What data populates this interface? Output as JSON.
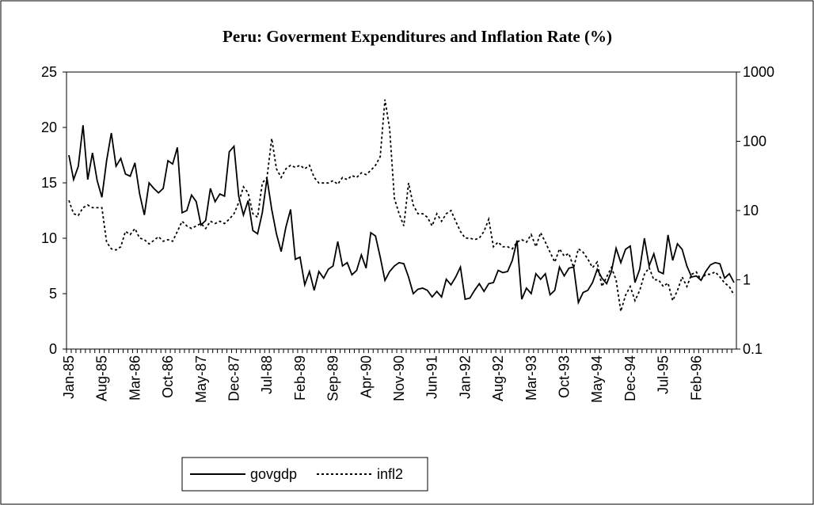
{
  "chart_data": {
    "type": "line",
    "title": "Peru: Goverment Expenditures and Inflation Rate (%)",
    "categories": [
      "Jan-85",
      null,
      null,
      null,
      null,
      null,
      null,
      "Aug-85",
      null,
      null,
      null,
      null,
      null,
      null,
      "Mar-86",
      null,
      null,
      null,
      null,
      null,
      null,
      "Oct-86",
      null,
      null,
      null,
      null,
      null,
      null,
      "May-87",
      null,
      null,
      null,
      null,
      null,
      null,
      "Dec-87",
      null,
      null,
      null,
      null,
      null,
      null,
      "Jul-88",
      null,
      null,
      null,
      null,
      null,
      null,
      "Feb-89",
      null,
      null,
      null,
      null,
      null,
      null,
      "Sep-89",
      null,
      null,
      null,
      null,
      null,
      null,
      "Apr-90",
      null,
      null,
      null,
      null,
      null,
      null,
      "Nov-90",
      null,
      null,
      null,
      null,
      null,
      null,
      "Jun-91",
      null,
      null,
      null,
      null,
      null,
      null,
      "Jan-92",
      null,
      null,
      null,
      null,
      null,
      null,
      "Aug-92",
      null,
      null,
      null,
      null,
      null,
      null,
      "Mar-93",
      null,
      null,
      null,
      null,
      null,
      null,
      "Oct-93",
      null,
      null,
      null,
      null,
      null,
      null,
      "May-94",
      null,
      null,
      null,
      null,
      null,
      null,
      "Dec-94",
      null,
      null,
      null,
      null,
      null,
      null,
      "Jul-95",
      null,
      null,
      null,
      null,
      null,
      null,
      "Feb-96",
      null,
      null,
      null,
      null,
      null,
      null,
      null,
      null
    ],
    "series": [
      {
        "name": "govgdp",
        "color": "#000000",
        "dash": "solid",
        "values": [
          17.5,
          15.3,
          16.5,
          20.2,
          15.3,
          17.7,
          15.2,
          13.7,
          17,
          19.5,
          16.5,
          17.2,
          15.8,
          15.6,
          16.8,
          14,
          12.1,
          15,
          14.5,
          14.1,
          14.5,
          17,
          16.7,
          18.2,
          12.3,
          12.5,
          13.9,
          13.3,
          11.2,
          11.6,
          14.5,
          13.3,
          14,
          13.8,
          17.8,
          18.3,
          13.8,
          12.1,
          13.4,
          10.7,
          10.4,
          12.3,
          15.4,
          12.6,
          10.4,
          8.8,
          11,
          12.6,
          8.1,
          8.3,
          5.8,
          7,
          5.3,
          7,
          6.4,
          7.2,
          7.5,
          9.7,
          7.5,
          7.8,
          6.7,
          7.1,
          8.5,
          7.3,
          10.5,
          10.2,
          8.3,
          6.2,
          7,
          7.5,
          7.8,
          7.7,
          6.5,
          5,
          5.4,
          5.5,
          5.3,
          4.7,
          5.2,
          4.7,
          6.3,
          5.8,
          6.5,
          7.4,
          4.5,
          4.6,
          5.3,
          5.9,
          5.2,
          5.9,
          6,
          7.1,
          6.9,
          7,
          8,
          9.8,
          4.5,
          5.5,
          5,
          6.8,
          6.3,
          6.8,
          4.9,
          5.3,
          7.4,
          6.6,
          7.3,
          7.4,
          4.2,
          5.1,
          5.3,
          6,
          7.2,
          6.4,
          5.9,
          7,
          9.1,
          7.8,
          9,
          9.3,
          6,
          7.2,
          10,
          7.5,
          8.6,
          7,
          6.8,
          10.3,
          8,
          9.5,
          9,
          7.5,
          6.5,
          6.6,
          6.2,
          7,
          7.6,
          7.8,
          7.7,
          6.4,
          6.8,
          6.0
        ]
      },
      {
        "name": "infl2",
        "color": "#000000",
        "dash": "dotted",
        "axis": "y2",
        "values": [
          14,
          9,
          8.5,
          11,
          12,
          11,
          11,
          11,
          3.5,
          2.8,
          2.7,
          3,
          5,
          4.5,
          5.5,
          4,
          3.8,
          3.3,
          3.7,
          4.2,
          3.6,
          3.8,
          3.6,
          5,
          7,
          6,
          5.5,
          6,
          6.5,
          5.5,
          7,
          6.5,
          7,
          6.5,
          7.5,
          9,
          13,
          22,
          18,
          9,
          8,
          25,
          30,
          110,
          40,
          30,
          40,
          45,
          42,
          45,
          40,
          45,
          30,
          25,
          25,
          25,
          27,
          24,
          30,
          28,
          32,
          30,
          35,
          33,
          38,
          45,
          60,
          400,
          150,
          15,
          9,
          6,
          25,
          12,
          9,
          9,
          8,
          6,
          9,
          7,
          9,
          10,
          7,
          5,
          4,
          4,
          3.8,
          4,
          5,
          7.5,
          3,
          3.5,
          3,
          3,
          2.8,
          3.5,
          3.8,
          3.5,
          4.5,
          3,
          4.8,
          3.5,
          2.5,
          1.8,
          2.8,
          2.2,
          2.4,
          1.5,
          2.8,
          2.5,
          2,
          1.5,
          1.8,
          0.8,
          1.1,
          1.5,
          1,
          0.35,
          0.6,
          0.8,
          0.5,
          0.7,
          1.2,
          1.5,
          1,
          1,
          0.8,
          0.9,
          0.5,
          0.7,
          1.1,
          0.8,
          1.2,
          1.3,
          1,
          1.2,
          1.2,
          1.3,
          1.1,
          0.9,
          0.8,
          0.6
        ]
      }
    ],
    "ylim": [
      0,
      25
    ],
    "yticks": [
      0,
      5,
      10,
      15,
      20,
      25
    ],
    "y2lim": [
      0.1,
      1000
    ],
    "y2ticks": [
      0.1,
      1,
      10,
      100,
      1000
    ],
    "y2log": true,
    "legend": "bottom-left"
  }
}
